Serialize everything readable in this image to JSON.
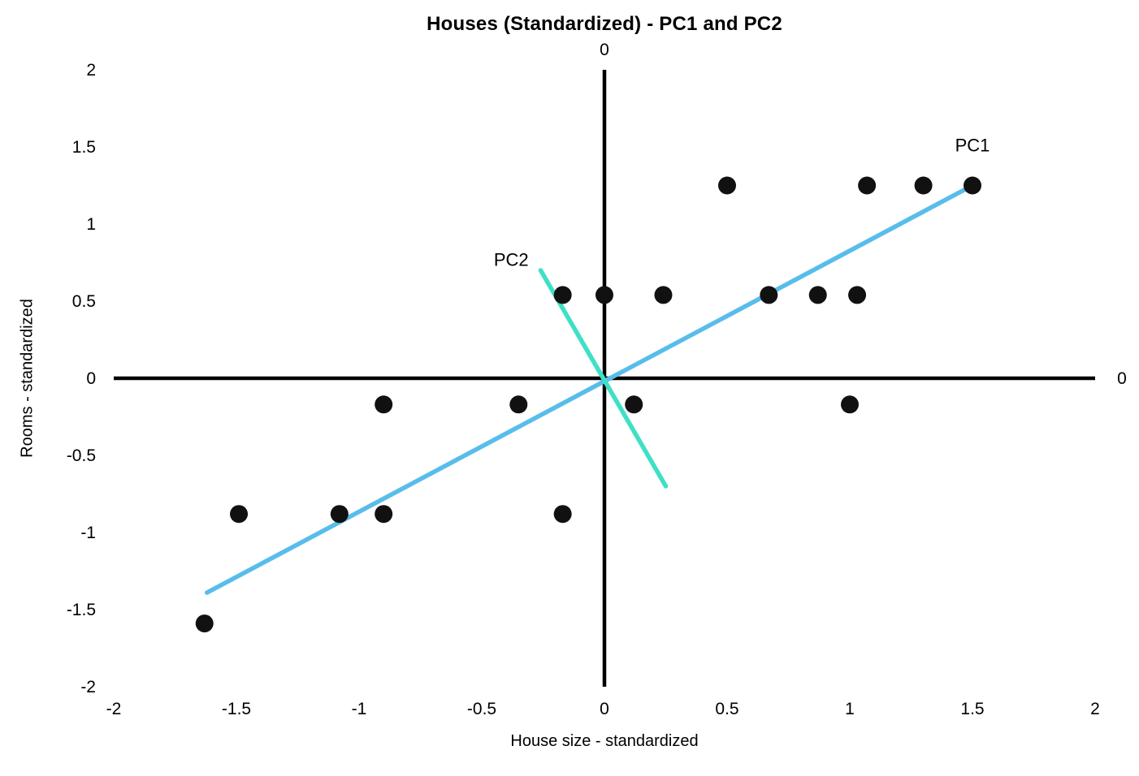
{
  "chart_data": {
    "type": "scatter",
    "title": "Houses (Standardized) - PC1 and PC2",
    "xlabel": "House size - standardized",
    "ylabel": "Rooms - standardized",
    "xlim": [
      -2,
      2
    ],
    "ylim": [
      -2,
      2
    ],
    "grid": false,
    "legend": "none",
    "x_ticks": [
      "-2",
      "-1.5",
      "-1",
      "-0.5",
      "0",
      "0.5",
      "1",
      "1.5",
      "2"
    ],
    "y_ticks": [
      "2",
      "1.5",
      "1",
      "0.5",
      "0",
      "-0.5",
      "-1",
      "-1.5",
      "-2"
    ],
    "axis_zero_labels": {
      "top": "0",
      "right": "0"
    },
    "point_color": "#111111",
    "points": [
      [
        0.5,
        1.25
      ],
      [
        1.07,
        1.25
      ],
      [
        1.3,
        1.25
      ],
      [
        1.5,
        1.25
      ],
      [
        -0.17,
        0.54
      ],
      [
        0.0,
        0.54
      ],
      [
        0.24,
        0.54
      ],
      [
        0.67,
        0.54
      ],
      [
        0.87,
        0.54
      ],
      [
        1.03,
        0.54
      ],
      [
        -0.9,
        -0.17
      ],
      [
        -0.35,
        -0.17
      ],
      [
        0.12,
        -0.17
      ],
      [
        1.0,
        -0.17
      ],
      [
        -1.49,
        -0.88
      ],
      [
        -1.08,
        -0.88
      ],
      [
        -0.9,
        -0.88
      ],
      [
        -0.17,
        -0.88
      ],
      [
        -1.63,
        -1.59
      ]
    ],
    "lines": [
      {
        "name": "PC1",
        "color": "#58BDEB",
        "from": [
          -1.62,
          -1.39
        ],
        "to": [
          1.5,
          1.25
        ],
        "label_pos": [
          1.5,
          1.47
        ]
      },
      {
        "name": "PC2",
        "color": "#3EE0C6",
        "from": [
          -0.26,
          0.7
        ],
        "to": [
          0.25,
          -0.7
        ],
        "label_pos": [
          -0.38,
          0.73
        ]
      }
    ]
  }
}
